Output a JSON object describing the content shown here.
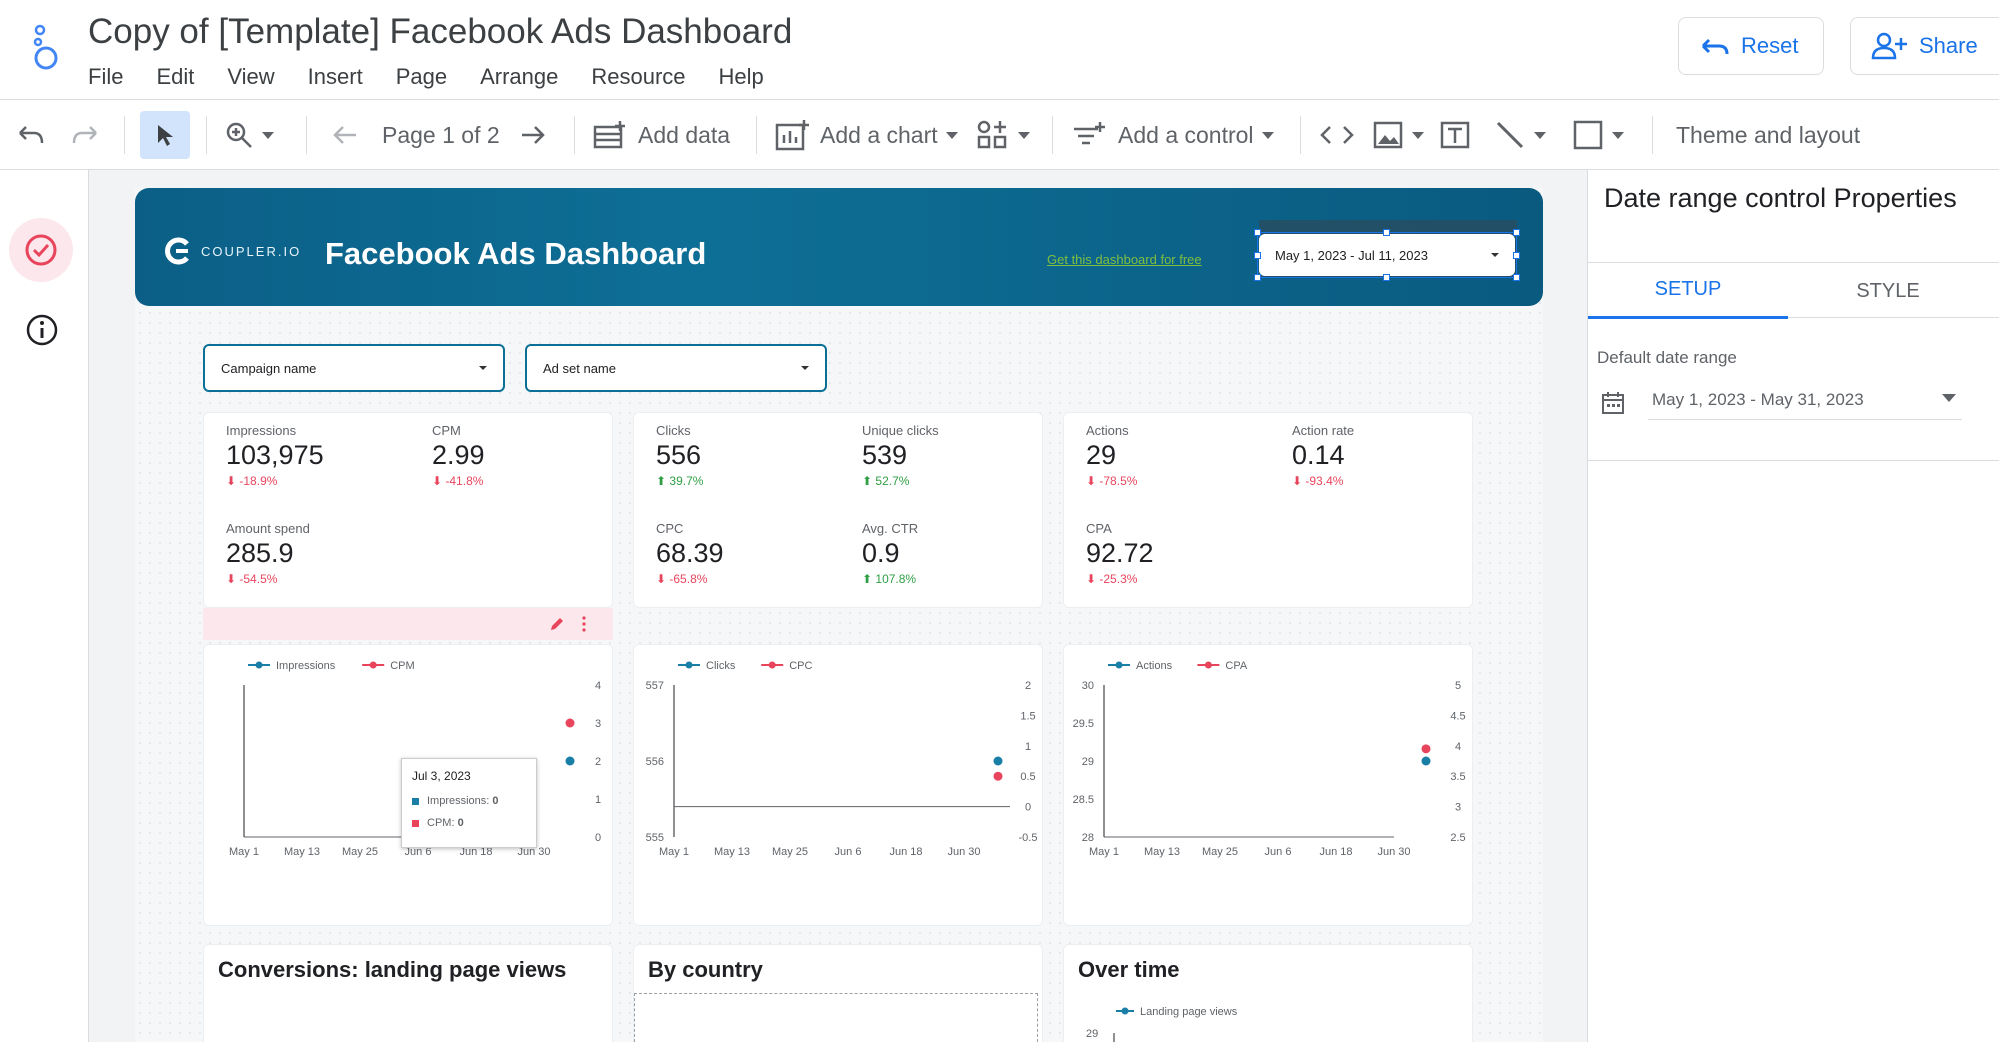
{
  "app": {
    "title": "Copy of [Template] Facebook Ads Dashboard",
    "menu": [
      "File",
      "Edit",
      "View",
      "Insert",
      "Page",
      "Arrange",
      "Resource",
      "Help"
    ],
    "reset_label": "Reset",
    "share_label": "Share"
  },
  "toolbar": {
    "page_label": "Page 1 of 2",
    "add_data": "Add data",
    "add_chart": "Add a chart",
    "add_control": "Add a control",
    "theme_layout": "Theme and layout"
  },
  "report": {
    "brand_wordmark": "COUPLER.IO",
    "title": "Facebook Ads Dashboard",
    "promo_link": "Get this dashboard for free",
    "date_range": "May 1, 2023 - Jul 11, 2023",
    "filters": [
      "Campaign name",
      "Ad set name"
    ],
    "kpi_groups": [
      {
        "items": [
          {
            "label": "Impressions",
            "value": "103,975",
            "delta": "-18.9%",
            "dir": "down"
          },
          {
            "label": "CPM",
            "value": "2.99",
            "delta": "-41.8%",
            "dir": "down"
          },
          {
            "label": "Amount spend",
            "value": "285.9",
            "delta": "-54.5%",
            "dir": "down"
          }
        ]
      },
      {
        "items": [
          {
            "label": "Clicks",
            "value": "556",
            "delta": "39.7%",
            "dir": "up"
          },
          {
            "label": "Unique clicks",
            "value": "539",
            "delta": "52.7%",
            "dir": "up"
          },
          {
            "label": "CPC",
            "value": "68.39",
            "delta": "-65.8%",
            "dir": "down"
          },
          {
            "label": "Avg. CTR",
            "value": "0.9",
            "delta": "107.8%",
            "dir": "up"
          }
        ]
      },
      {
        "items": [
          {
            "label": "Actions",
            "value": "29",
            "delta": "-78.5%",
            "dir": "down"
          },
          {
            "label": "Action rate",
            "value": "0.14",
            "delta": "-93.4%",
            "dir": "down"
          },
          {
            "label": "CPA",
            "value": "92.72",
            "delta": "-25.3%",
            "dir": "down"
          }
        ]
      }
    ],
    "tooltip": {
      "title": "Jul 3, 2023",
      "row1": "Impressions: ",
      "row1_value": "0",
      "row2": "CPM: ",
      "row2_value": "0"
    },
    "sections": {
      "conversions": "Conversions: landing page views",
      "by_country": "By country",
      "over_time": "Over time",
      "over_time_legend": "Landing page views",
      "over_time_tick": "29"
    }
  },
  "colors": {
    "series_a": "#1a7fa6",
    "series_b": "#e8455d",
    "banner": "#0b5f87"
  },
  "chart_data": [
    {
      "type": "line",
      "series": [
        {
          "name": "Impressions",
          "axis": "left"
        },
        {
          "name": "CPM",
          "axis": "right"
        }
      ],
      "x_ticks": [
        "May 1",
        "May 13",
        "May 25",
        "Jun 6",
        "Jun 18",
        "Jun 30"
      ],
      "y_left_ticks": [],
      "y_right_ticks": [
        "4",
        "3",
        "2",
        "1",
        "0"
      ],
      "y_right_lim": [
        0,
        4
      ],
      "points": [
        {
          "series": "CPM",
          "x": "Jul 11",
          "y": 3.0
        },
        {
          "series": "Impressions",
          "x": "Jul 11",
          "y": 2.0
        }
      ]
    },
    {
      "type": "line",
      "series": [
        {
          "name": "Clicks",
          "axis": "left"
        },
        {
          "name": "CPC",
          "axis": "right"
        }
      ],
      "x_ticks": [
        "May 1",
        "May 13",
        "May 25",
        "Jun 6",
        "Jun 18",
        "Jun 30"
      ],
      "y_left_ticks": [
        "557",
        "556",
        "555"
      ],
      "y_left_lim": [
        555,
        557
      ],
      "y_right_ticks": [
        "2",
        "1.5",
        "1",
        "0.5",
        "0",
        "-0.5"
      ],
      "y_right_lim": [
        -0.5,
        2
      ],
      "points": [
        {
          "series": "Clicks",
          "x": "Jul 11",
          "y": 0.75
        },
        {
          "series": "CPC",
          "x": "Jul 11",
          "y": 0.5
        }
      ]
    },
    {
      "type": "line",
      "series": [
        {
          "name": "Actions",
          "axis": "left"
        },
        {
          "name": "CPA",
          "axis": "right"
        }
      ],
      "x_ticks": [
        "May 1",
        "May 13",
        "May 25",
        "Jun 6",
        "Jun 18",
        "Jun 30"
      ],
      "y_left_ticks": [
        "30",
        "29.5",
        "29",
        "28.5",
        "28"
      ],
      "y_left_lim": [
        28,
        30
      ],
      "y_right_ticks": [
        "5",
        "4.5",
        "4",
        "3.5",
        "3",
        "2.5"
      ],
      "y_right_lim": [
        2.5,
        5
      ],
      "points": [
        {
          "series": "Actions",
          "x": "Jul 11",
          "y": 29.0
        },
        {
          "series": "CPA",
          "x": "Jul 11",
          "y": 3.95
        }
      ]
    }
  ],
  "panel": {
    "title": "Date range control Properties",
    "tab_setup": "SETUP",
    "tab_style": "STYLE",
    "default_range_label": "Default date range",
    "default_range_value": "May 1, 2023 - May 31, 2023"
  }
}
